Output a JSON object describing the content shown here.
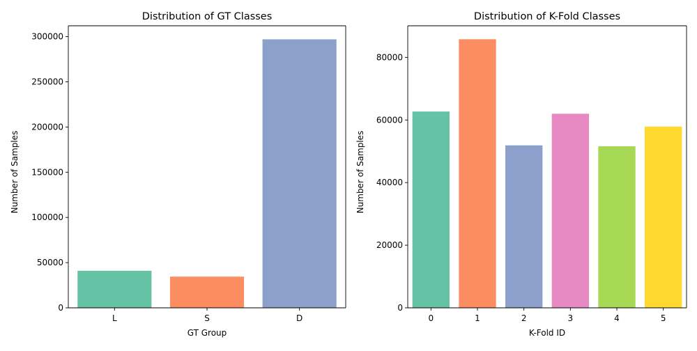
{
  "chart_data": [
    {
      "type": "bar",
      "title": "Distribution of GT Classes",
      "xlabel": "GT Group",
      "ylabel": "Number of Samples",
      "categories": [
        "L",
        "S",
        "D"
      ],
      "values": [
        41000,
        34500,
        297000
      ],
      "colors": [
        "#66c2a5",
        "#fc8d62",
        "#8da0cb"
      ],
      "ylim": [
        0,
        312000
      ],
      "yticks": [
        0,
        50000,
        100000,
        150000,
        200000,
        250000,
        300000
      ],
      "ytick_labels": [
        "0",
        "50000",
        "100000",
        "150000",
        "200000",
        "250000",
        "300000"
      ],
      "grid": false
    },
    {
      "type": "bar",
      "title": "Distribution of K-Fold Classes",
      "xlabel": "K-Fold ID",
      "ylabel": "Number of Samples",
      "categories": [
        "0",
        "1",
        "2",
        "3",
        "4",
        "5"
      ],
      "values": [
        62700,
        85800,
        51900,
        62000,
        51600,
        57900
      ],
      "colors": [
        "#66c2a5",
        "#fc8d62",
        "#8da0cb",
        "#e78ac3",
        "#a6d854",
        "#ffd92f"
      ],
      "ylim": [
        0,
        90100
      ],
      "yticks": [
        0,
        20000,
        40000,
        60000,
        80000
      ],
      "ytick_labels": [
        "0",
        "20000",
        "40000",
        "60000",
        "80000"
      ],
      "grid": false
    }
  ]
}
